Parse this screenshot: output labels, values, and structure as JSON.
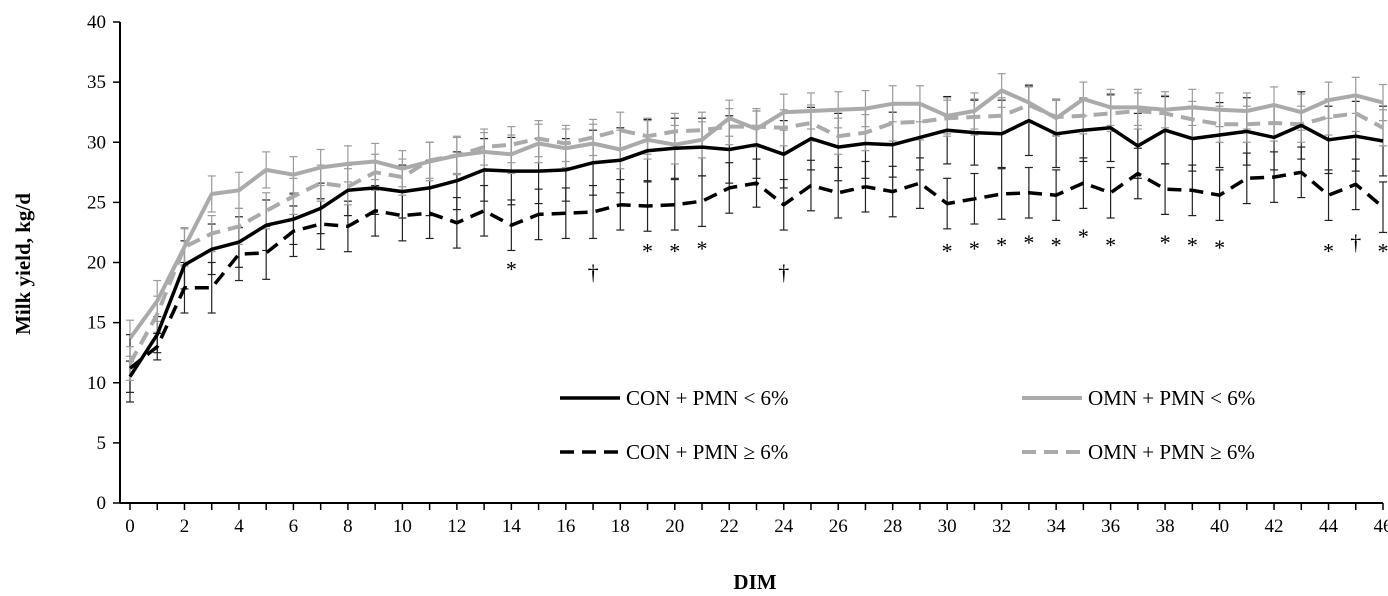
{
  "chart_data": {
    "type": "line",
    "xlabel": "DIM",
    "ylabel": "Milk yield, kg/d",
    "xlim": [
      0,
      46
    ],
    "ylim": [
      0,
      40
    ],
    "x_ticks": [
      0,
      2,
      4,
      6,
      8,
      10,
      12,
      14,
      16,
      18,
      20,
      22,
      24,
      26,
      28,
      30,
      32,
      34,
      36,
      38,
      40,
      42,
      44,
      46
    ],
    "y_ticks": [
      0,
      5,
      10,
      15,
      20,
      25,
      30,
      35,
      40
    ],
    "grid": false,
    "legend_position": "bottom-right",
    "x": [
      0,
      1,
      2,
      3,
      4,
      5,
      6,
      7,
      8,
      9,
      10,
      11,
      12,
      13,
      14,
      15,
      16,
      17,
      18,
      19,
      20,
      21,
      22,
      23,
      24,
      25,
      26,
      27,
      28,
      29,
      30,
      31,
      32,
      33,
      34,
      35,
      36,
      37,
      38,
      39,
      40,
      41,
      42,
      43,
      44,
      45,
      46
    ],
    "series": [
      {
        "name": "CON + PMN < 6%",
        "color": "#000000",
        "dashed": false,
        "values": [
          10.5,
          14.0,
          19.8,
          21.1,
          21.7,
          23.1,
          23.6,
          24.5,
          26.0,
          26.2,
          25.9,
          26.2,
          26.8,
          27.7,
          27.6,
          27.6,
          27.7,
          28.3,
          28.5,
          29.3,
          29.5,
          29.6,
          29.4,
          29.8,
          29.0,
          30.3,
          29.6,
          29.9,
          29.8,
          30.4,
          31.0,
          30.8,
          30.7,
          31.8,
          30.7,
          31.0,
          31.2,
          29.7,
          31.0,
          30.3,
          30.6,
          30.9,
          30.4,
          31.4,
          30.2,
          30.5,
          30.1
        ],
        "error": [
          1.3,
          1.5,
          2.0,
          2.1,
          2.1,
          2.1,
          2.1,
          2.1,
          2.1,
          2.2,
          2.2,
          2.3,
          2.4,
          2.6,
          2.8,
          2.7,
          2.6,
          2.7,
          2.7,
          2.6,
          2.5,
          2.4,
          2.8,
          2.8,
          2.8,
          2.6,
          2.8,
          2.9,
          2.7,
          2.7,
          2.8,
          2.7,
          2.8,
          2.9,
          2.8,
          2.6,
          2.8,
          2.7,
          2.8,
          2.7,
          2.7,
          2.8,
          2.7,
          2.8,
          2.8,
          2.9,
          2.9
        ]
      },
      {
        "name": "OMN + PMN < 6%",
        "color": "#aaaaaa",
        "dashed": false,
        "values": [
          13.7,
          16.8,
          21.3,
          25.7,
          26.0,
          27.7,
          27.3,
          27.9,
          28.2,
          28.4,
          27.8,
          28.4,
          28.9,
          29.2,
          29.0,
          29.9,
          29.5,
          29.9,
          29.4,
          30.2,
          29.8,
          30.2,
          32.0,
          31.1,
          32.5,
          32.6,
          32.7,
          32.8,
          33.2,
          33.2,
          32.2,
          32.6,
          34.3,
          33.3,
          32.0,
          33.6,
          32.9,
          32.9,
          32.7,
          32.9,
          32.7,
          32.6,
          33.1,
          32.5,
          33.5,
          33.9,
          33.3
        ],
        "error": [
          1.5,
          1.7,
          1.6,
          1.5,
          1.5,
          1.5,
          1.5,
          1.5,
          1.5,
          1.5,
          1.5,
          1.6,
          1.6,
          1.6,
          1.6,
          1.6,
          1.6,
          1.6,
          1.6,
          1.6,
          1.6,
          1.5,
          1.5,
          1.5,
          1.5,
          1.5,
          1.5,
          1.5,
          1.5,
          1.5,
          1.5,
          1.5,
          1.4,
          1.5,
          1.5,
          1.4,
          1.5,
          1.5,
          1.5,
          1.5,
          1.4,
          1.5,
          1.5,
          1.5,
          1.5,
          1.5,
          1.5
        ]
      },
      {
        "name": "CON + PMN ≥ 6%",
        "color": "#000000",
        "dashed": true,
        "values": [
          11.2,
          13.0,
          17.9,
          17.9,
          20.7,
          20.8,
          22.6,
          23.2,
          23.0,
          24.3,
          23.9,
          24.1,
          23.3,
          24.3,
          23.1,
          24.0,
          24.1,
          24.2,
          24.8,
          24.7,
          24.8,
          25.1,
          26.2,
          26.6,
          24.8,
          26.4,
          25.8,
          26.3,
          25.9,
          26.6,
          24.9,
          25.3,
          25.7,
          25.8,
          25.6,
          26.6,
          25.8,
          27.4,
          26.1,
          26.0,
          25.6,
          27.0,
          27.1,
          27.5,
          25.6,
          26.5,
          24.6
        ],
        "error": [
          2.8,
          1.1,
          2.1,
          2.1,
          2.2,
          2.2,
          2.1,
          2.1,
          2.1,
          2.1,
          2.1,
          2.1,
          2.1,
          2.1,
          2.1,
          2.1,
          2.1,
          2.2,
          2.1,
          2.1,
          2.1,
          2.1,
          2.1,
          2.0,
          2.1,
          2.1,
          2.1,
          2.1,
          2.1,
          2.1,
          2.1,
          2.1,
          2.1,
          2.1,
          2.1,
          2.1,
          2.1,
          2.1,
          2.1,
          2.1,
          2.1,
          2.1,
          2.1,
          2.1,
          2.1,
          2.1,
          2.1
        ]
      },
      {
        "name": "OMN + PMN ≥ 6%",
        "color": "#aaaaaa",
        "dashed": true,
        "values": [
          11.6,
          15.7,
          21.3,
          22.4,
          23.0,
          24.3,
          25.5,
          26.6,
          26.3,
          27.5,
          27.1,
          28.5,
          28.9,
          29.6,
          29.8,
          30.3,
          29.9,
          30.4,
          31.0,
          30.5,
          30.9,
          31.0,
          31.3,
          31.3,
          31.2,
          31.6,
          30.5,
          30.8,
          31.6,
          31.7,
          32.0,
          32.1,
          32.2,
          33.1,
          32.1,
          32.2,
          32.4,
          32.6,
          32.4,
          31.9,
          31.5,
          31.5,
          31.6,
          31.5,
          32.1,
          32.4,
          31.2
        ],
        "error": [
          1.4,
          1.5,
          1.5,
          1.5,
          1.5,
          1.5,
          1.5,
          1.5,
          1.5,
          1.5,
          1.5,
          1.5,
          1.5,
          1.5,
          1.5,
          1.5,
          1.5,
          1.5,
          1.5,
          1.5,
          1.5,
          1.5,
          1.5,
          1.5,
          1.5,
          1.5,
          1.5,
          1.5,
          1.5,
          1.5,
          1.5,
          1.5,
          1.5,
          1.5,
          1.5,
          1.5,
          1.5,
          1.5,
          1.5,
          1.5,
          1.5,
          1.5,
          1.5,
          1.5,
          1.5,
          1.5,
          1.5
        ]
      }
    ],
    "annotations": [
      {
        "x": 14,
        "y": 19.5,
        "text": "*"
      },
      {
        "x": 17,
        "y": 19.2,
        "text": "†"
      },
      {
        "x": 19,
        "y": 21.0,
        "text": "*"
      },
      {
        "x": 20,
        "y": 21.0,
        "text": "*"
      },
      {
        "x": 21,
        "y": 21.2,
        "text": "*"
      },
      {
        "x": 24,
        "y": 19.2,
        "text": "†"
      },
      {
        "x": 30,
        "y": 21.0,
        "text": "*"
      },
      {
        "x": 31,
        "y": 21.2,
        "text": "*"
      },
      {
        "x": 32,
        "y": 21.5,
        "text": "*"
      },
      {
        "x": 33,
        "y": 21.7,
        "text": "*"
      },
      {
        "x": 34,
        "y": 21.5,
        "text": "*"
      },
      {
        "x": 35,
        "y": 22.2,
        "text": "*"
      },
      {
        "x": 36,
        "y": 21.5,
        "text": "*"
      },
      {
        "x": 38,
        "y": 21.7,
        "text": "*"
      },
      {
        "x": 39,
        "y": 21.5,
        "text": "*"
      },
      {
        "x": 40,
        "y": 21.3,
        "text": "*"
      },
      {
        "x": 44,
        "y": 21.0,
        "text": "*"
      },
      {
        "x": 45,
        "y": 21.7,
        "text": "†"
      },
      {
        "x": 46,
        "y": 21.0,
        "text": "*"
      }
    ]
  }
}
